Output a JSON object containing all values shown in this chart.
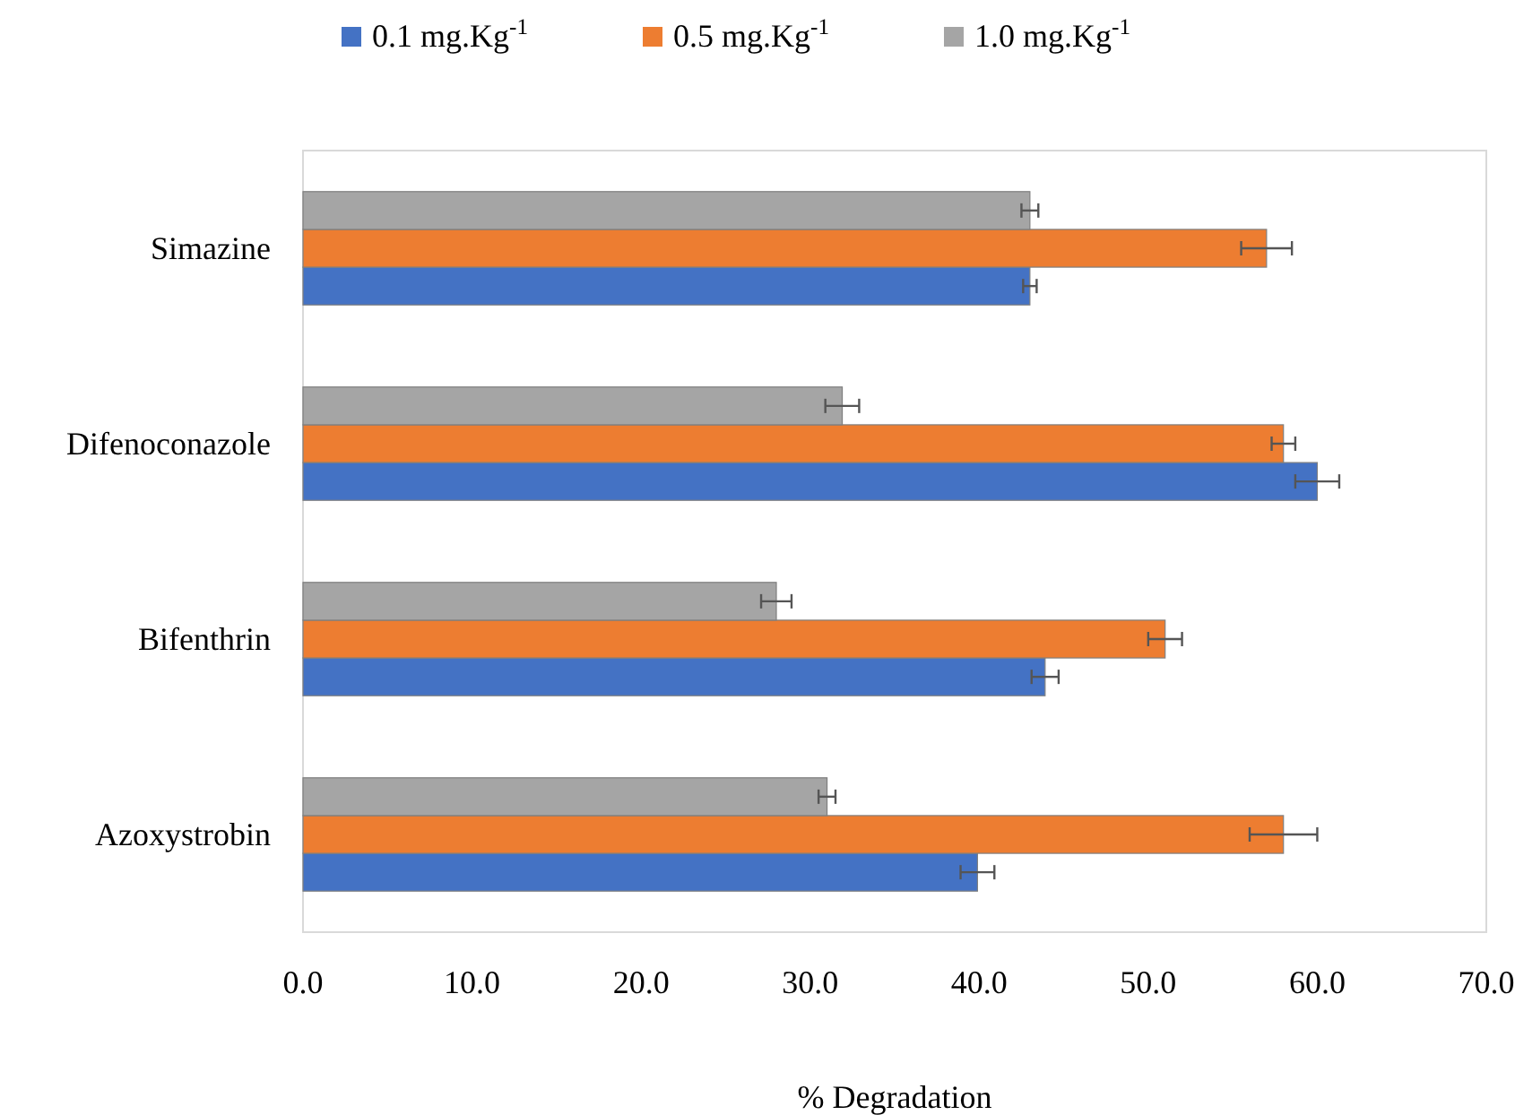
{
  "chart_data": {
    "type": "bar",
    "orientation": "horizontal",
    "xlabel": "% Degradation",
    "categories": [
      "Simazine",
      "Difenoconazole",
      "Bifenthrin",
      "Azoxystrobin"
    ],
    "series": [
      {
        "name": "0.1 mg.Kg$^{-1}$",
        "color": "#4472c4",
        "values": [
          43.0,
          60.0,
          43.9,
          39.9
        ],
        "errors": [
          0.4,
          1.3,
          0.8,
          1.0
        ]
      },
      {
        "name": "0.5 mg.Kg$^{-1}$",
        "color": "#ed7d31",
        "values": [
          57.0,
          58.0,
          51.0,
          58.0
        ],
        "errors": [
          1.5,
          0.7,
          1.0,
          2.0
        ]
      },
      {
        "name": "1.0 mg.Kg$^{-1}$",
        "color": "#a5a5a5",
        "values": [
          43.0,
          31.9,
          28.0,
          31.0
        ],
        "errors": [
          0.5,
          1.0,
          0.9,
          0.5
        ]
      }
    ],
    "xlim": [
      0,
      70
    ],
    "xticks": [
      {
        "value": 0,
        "label": "0.0"
      },
      {
        "value": 10,
        "label": "10.0"
      },
      {
        "value": 20,
        "label": "20.0"
      },
      {
        "value": 30,
        "label": "30.0"
      },
      {
        "value": 40,
        "label": "40.0"
      },
      {
        "value": 50,
        "label": "50.0"
      },
      {
        "value": 60,
        "label": "60.0"
      },
      {
        "value": 70,
        "label": "70.0"
      }
    ],
    "grid": false,
    "legend": "top"
  }
}
